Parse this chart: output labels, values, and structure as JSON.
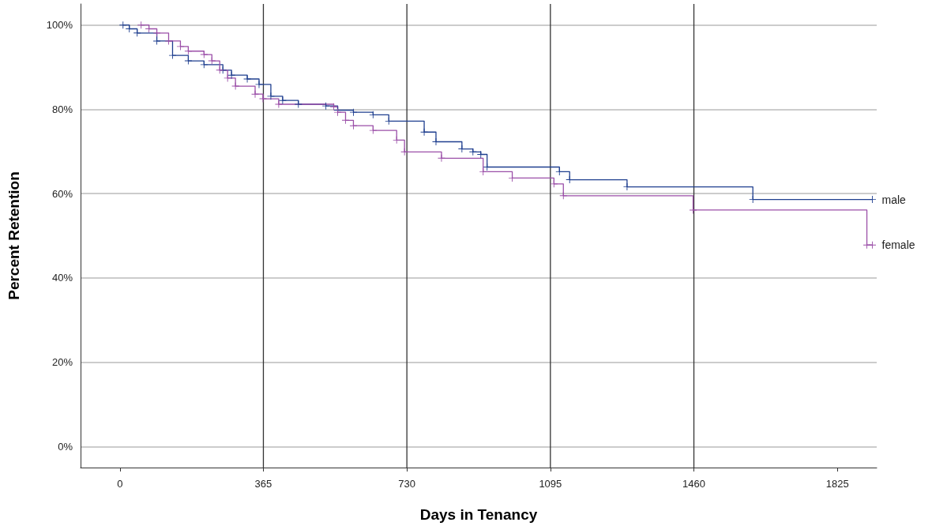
{
  "chart_data": {
    "type": "step",
    "xlabel": "Days in Tenancy",
    "ylabel": "Percent Retention",
    "xlim": [
      -100,
      1925
    ],
    "xticks": [
      0,
      365,
      730,
      1095,
      1460,
      1825
    ],
    "ylim": [
      -5,
      105
    ],
    "yticks": [
      {
        "value": 0,
        "label": "0%"
      },
      {
        "value": 20,
        "label": "20%"
      },
      {
        "value": 40,
        "label": "40%"
      },
      {
        "value": 60,
        "label": "60%"
      },
      {
        "value": 80,
        "label": "80%"
      },
      {
        "value": 100,
        "label": "100%"
      }
    ],
    "grid": "y",
    "legend": false,
    "marker": "cross",
    "line_style": "solid",
    "ref_lines": [
      {
        "axis": "x",
        "value": 365,
        "color": "#333333"
      },
      {
        "axis": "x",
        "value": 730,
        "color": "#333333"
      },
      {
        "axis": "x",
        "value": 1095,
        "color": "#333333"
      },
      {
        "axis": "x",
        "value": 1460,
        "color": "#333333"
      }
    ],
    "series": [
      {
        "name": "male",
        "color": "#1f3f8f",
        "x": [
          8,
          24,
          44,
          94,
          134,
          174,
          214,
          262,
          284,
          324,
          354,
          384,
          414,
          454,
          524,
          554,
          594,
          644,
          684,
          774,
          804,
          870,
          898,
          918,
          934,
          1118,
          1144,
          1290,
          1610,
          1914
        ],
        "values": [
          100,
          99.1,
          98.1,
          96.2,
          92.8,
          91.5,
          90.6,
          89.3,
          88.1,
          87.2,
          85.9,
          83.1,
          82.1,
          81.2,
          80.8,
          79.8,
          79.3,
          78.7,
          77.2,
          74.6,
          72.3,
          70.6,
          69.9,
          69.3,
          66.3,
          65.2,
          63.3,
          61.6,
          58.6,
          58.6
        ]
      },
      {
        "name": "female",
        "color": "#9b4fa8",
        "x": [
          54,
          74,
          94,
          124,
          154,
          174,
          214,
          234,
          254,
          274,
          294,
          344,
          364,
          404,
          544,
          554,
          574,
          594,
          644,
          704,
          724,
          818,
          924,
          998,
          1104,
          1128,
          1458,
          1900,
          1914
        ],
        "values": [
          100,
          99.1,
          98.1,
          96.2,
          94.9,
          93.8,
          93,
          91.5,
          89.3,
          87.4,
          85.5,
          83.6,
          82.5,
          81.2,
          80.6,
          79.3,
          77.4,
          76.1,
          75,
          72.7,
          69.9,
          68.4,
          65.2,
          63.7,
          62.3,
          59.5,
          56.1,
          47.8,
          47.8
        ]
      }
    ]
  }
}
